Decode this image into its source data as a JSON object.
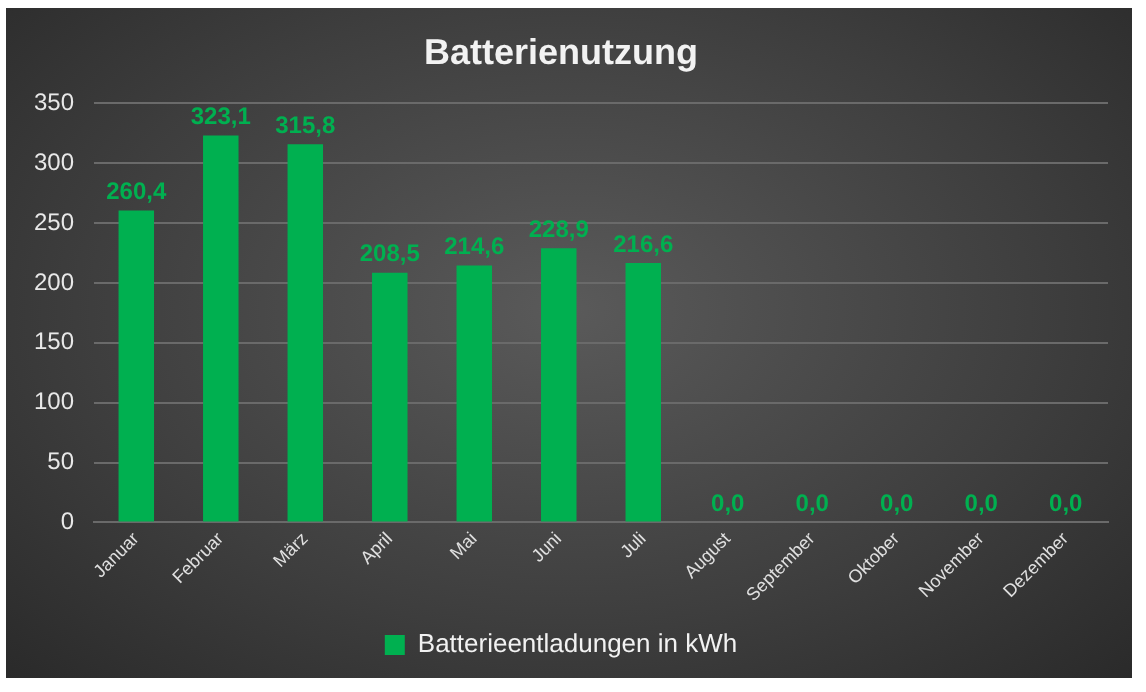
{
  "chart_data": {
    "type": "bar",
    "title": "Batterienutzung",
    "categories": [
      "Januar",
      "Februar",
      "März",
      "April",
      "Mai",
      "Juni",
      "Juli",
      "August",
      "September",
      "Oktober",
      "November",
      "Dezember"
    ],
    "series": [
      {
        "name": "Batterieentladungen in kWh",
        "color": "#00b050",
        "values": [
          260.4,
          323.1,
          315.8,
          208.5,
          214.6,
          228.9,
          216.6,
          0,
          0,
          0,
          0,
          0
        ],
        "value_labels": [
          "260,4",
          "323,1",
          "315,8",
          "208,5",
          "214,6",
          "228,9",
          "216,6",
          "0,0",
          "0,0",
          "0,0",
          "0,0",
          "0,0"
        ]
      }
    ],
    "ylim": [
      0,
      350
    ],
    "yticks": [
      0,
      50,
      100,
      150,
      200,
      250,
      300,
      350
    ],
    "grid": "y",
    "legend": "bottom"
  }
}
